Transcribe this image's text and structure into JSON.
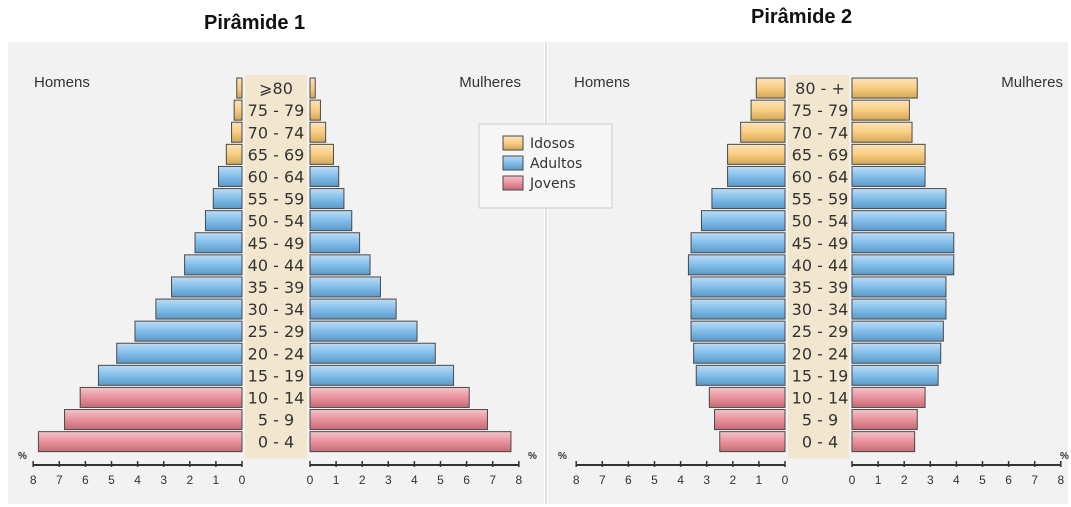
{
  "colors": {
    "panel_bg": "#f2f2f2",
    "age_band": "#f3e6cf",
    "idosos": "#f7c46a",
    "adultos": "#6cb2e8",
    "jovens": "#e57e8a"
  },
  "legend": {
    "items": [
      {
        "label": "Idosos",
        "color_key": "idosos"
      },
      {
        "label": "Adultos",
        "color_key": "adultos"
      },
      {
        "label": "Jovens",
        "color_key": "jovens"
      }
    ]
  },
  "chart_data": [
    {
      "type": "bar",
      "title": "Pirâmide 1",
      "left_label": "Homens",
      "right_label": "Mulheres",
      "unit_label": "%",
      "xlim": [
        0,
        8
      ],
      "ticks": [
        "0",
        "1",
        "2",
        "3",
        "4",
        "5",
        "6",
        "7",
        "8"
      ],
      "categories": [
        "0 - 4",
        "5 - 9",
        "10 - 14",
        "15 - 19",
        "20 - 24",
        "25 - 29",
        "30 - 34",
        "35 - 39",
        "40 - 44",
        "45 - 49",
        "50 - 54",
        "55 - 59",
        "60 - 64",
        "65 - 69",
        "70 - 74",
        "75 - 79",
        "⩾80"
      ],
      "groups": [
        "jovens",
        "jovens",
        "jovens",
        "adultos",
        "adultos",
        "adultos",
        "adultos",
        "adultos",
        "adultos",
        "adultos",
        "adultos",
        "adultos",
        "adultos",
        "idosos",
        "idosos",
        "idosos",
        "idosos"
      ],
      "series": [
        {
          "name": "Homens",
          "values": [
            7.8,
            6.8,
            6.2,
            5.5,
            4.8,
            4.1,
            3.3,
            2.7,
            2.2,
            1.8,
            1.4,
            1.1,
            0.9,
            0.6,
            0.4,
            0.3,
            0.2
          ]
        },
        {
          "name": "Mulheres",
          "values": [
            7.7,
            6.8,
            6.1,
            5.5,
            4.8,
            4.1,
            3.3,
            2.7,
            2.3,
            1.9,
            1.6,
            1.3,
            1.1,
            0.9,
            0.6,
            0.4,
            0.2
          ]
        }
      ]
    },
    {
      "type": "bar",
      "title": "Pirâmide 2",
      "left_label": "Homens",
      "right_label": "Mulheres",
      "unit_label": "%",
      "xlim": [
        0,
        8
      ],
      "ticks": [
        "0",
        "1",
        "2",
        "3",
        "4",
        "5",
        "6",
        "7",
        "8"
      ],
      "categories": [
        "0 - 4",
        "5 - 9",
        "10 - 14",
        "15 - 19",
        "20 - 24",
        "25 - 29",
        "30 - 34",
        "35 - 39",
        "40 - 44",
        "45 - 49",
        "50 - 54",
        "55 - 59",
        "60 - 64",
        "65 - 69",
        "70 - 74",
        "75 - 79",
        "80 - +"
      ],
      "groups": [
        "jovens",
        "jovens",
        "jovens",
        "adultos",
        "adultos",
        "adultos",
        "adultos",
        "adultos",
        "adultos",
        "adultos",
        "adultos",
        "adultos",
        "adultos",
        "idosos",
        "idosos",
        "idosos",
        "idosos"
      ],
      "series": [
        {
          "name": "Homens",
          "values": [
            2.5,
            2.7,
            2.9,
            3.4,
            3.5,
            3.6,
            3.6,
            3.6,
            3.7,
            3.6,
            3.2,
            2.8,
            2.2,
            2.2,
            1.7,
            1.3,
            1.1
          ]
        },
        {
          "name": "Mulheres",
          "values": [
            2.4,
            2.5,
            2.8,
            3.3,
            3.4,
            3.5,
            3.6,
            3.6,
            3.9,
            3.9,
            3.6,
            3.6,
            2.8,
            2.8,
            2.3,
            2.2,
            2.5
          ]
        }
      ]
    }
  ]
}
